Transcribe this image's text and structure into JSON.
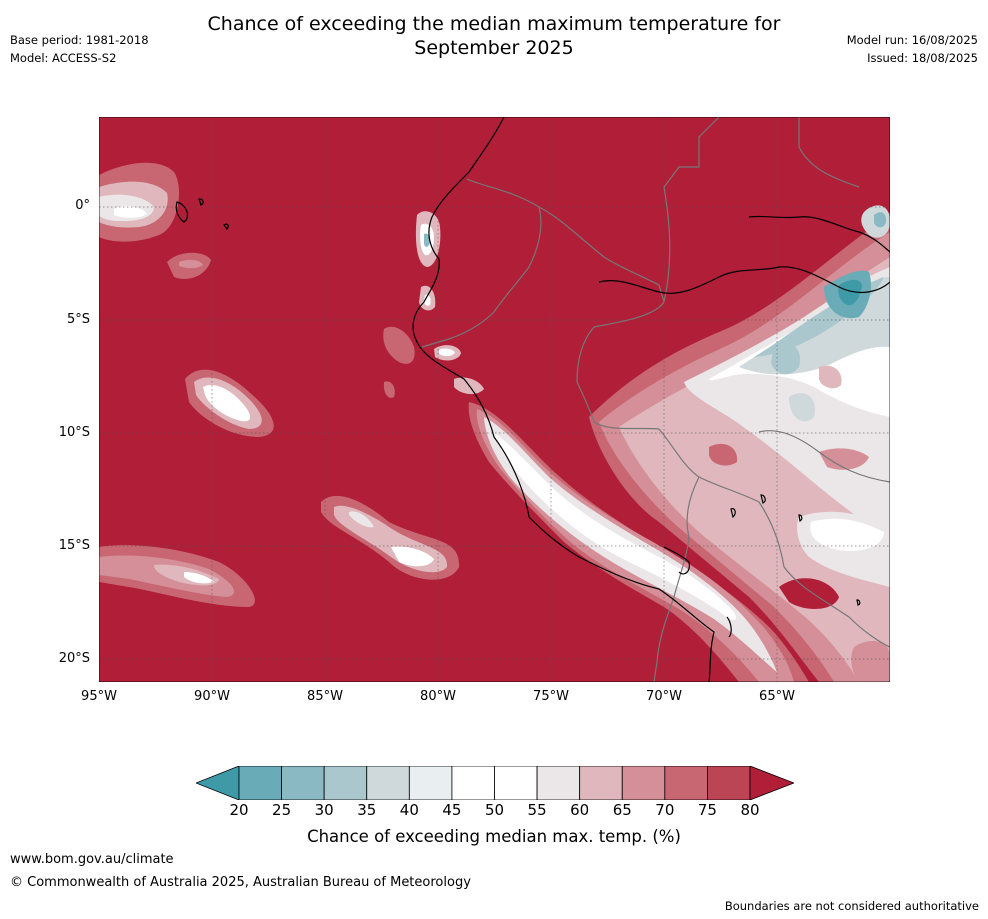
{
  "header": {
    "title_line1": "Chance of exceeding the median maximum temperature for",
    "title_line2": "September 2025",
    "base_period": "Base period: 1981-2018",
    "model": "Model: ACCESS-S2",
    "model_run": "Model run: 16/08/2025",
    "issued": "Issued: 18/08/2025"
  },
  "map": {
    "region": "Western South America and eastern Pacific",
    "lat_labels": [
      "0°",
      "5°S",
      "10°S",
      "15°S",
      "20°S"
    ],
    "lon_labels": [
      "95°W",
      "90°W",
      "85°W",
      "80°W",
      "75°W",
      "70°W",
      "65°W"
    ],
    "lat_range": [
      -21,
      4
    ],
    "lon_range": [
      -95,
      -60
    ],
    "grid": "dotted",
    "background_class_color": "#b01e38"
  },
  "colorbar": {
    "ticks": [
      "20",
      "25",
      "30",
      "35",
      "40",
      "45",
      "50",
      "55",
      "60",
      "65",
      "70",
      "75",
      "80"
    ],
    "colors": [
      "#3f9aa8",
      "#6aabb8",
      "#8ab9c3",
      "#a9c7cd",
      "#cfd8da",
      "#e9eef1",
      "#ffffff",
      "#ffffff",
      "#ebe6e7",
      "#dfb7bd",
      "#d58f98",
      "#c86672",
      "#bb4455",
      "#b01e38"
    ],
    "label": "Chance of exceeding median max. temp. (%)"
  },
  "footer": {
    "url": "www.bom.gov.au/climate",
    "copyright": "© Commonwealth of Australia 2025, Australian Bureau of Meteorology",
    "disclaimer": "Boundaries are not considered authoritative"
  }
}
